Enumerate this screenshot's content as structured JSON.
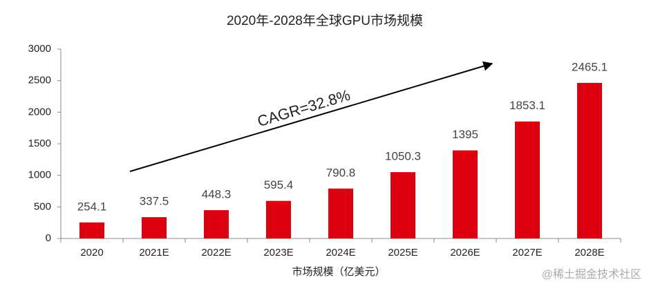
{
  "chart_data": {
    "type": "bar",
    "title": "2020年-2028年全球GPU市场规模",
    "x_label": "市场规模（亿美元）",
    "categories": [
      "2020",
      "2021E",
      "2022E",
      "2023E",
      "2024E",
      "2025E",
      "2026E",
      "2027E",
      "2028E"
    ],
    "values": [
      254.1,
      337.5,
      448.3,
      595.4,
      790.8,
      1050.3,
      1395,
      1853.1,
      2465.1
    ],
    "color": "#dd0011",
    "ylim": [
      0,
      3000
    ],
    "yticks": [
      0,
      500,
      1000,
      1500,
      2000,
      2500,
      3000
    ],
    "grid": false,
    "annotation": "CAGR=32.8%",
    "watermark": "@稀土掘金技术社区"
  }
}
